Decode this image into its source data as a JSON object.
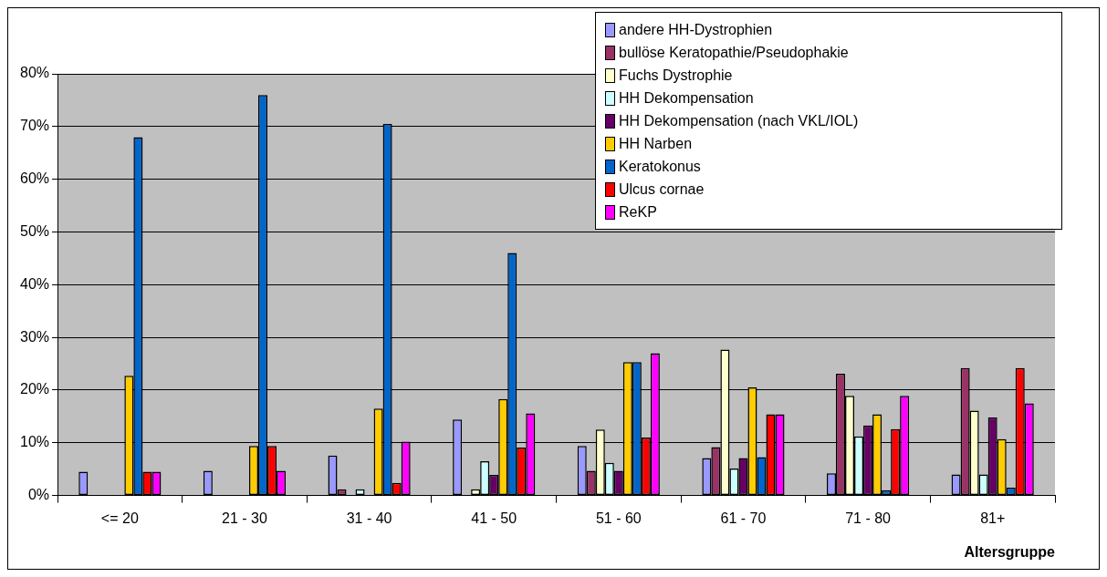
{
  "chart_data": {
    "type": "bar",
    "xlabel": "Altersgruppe",
    "categories": [
      "<= 20",
      "21 - 30",
      "31 - 40",
      "41 - 50",
      "51 - 60",
      "61 - 70",
      "71 - 80",
      "81+"
    ],
    "series": [
      {
        "name": "andere HH-Dystrophien",
        "color": "#9999ff",
        "values": [
          4.5,
          4.7,
          7.6,
          14.4,
          9.4,
          7.1,
          4.2,
          4.0
        ]
      },
      {
        "name": "bullöse Keratopathie/Pseudophakie",
        "color": "#993366",
        "values": [
          0,
          0,
          1.2,
          0,
          4.7,
          9.2,
          23.1,
          24.2
        ]
      },
      {
        "name": "Fuchs Dystrophie",
        "color": "#ffffcc",
        "values": [
          0,
          0,
          0,
          1.2,
          12.5,
          27.7,
          18.9,
          16.1
        ]
      },
      {
        "name": "HH Dekompensation",
        "color": "#ccffff",
        "values": [
          0,
          0,
          1.2,
          6.5,
          6.2,
          5.1,
          11.2,
          4.0
        ]
      },
      {
        "name": "HH Dekompensation (nach VKL/IOL)",
        "color": "#660066",
        "values": [
          0,
          0,
          0,
          3.9,
          4.7,
          7.1,
          13.3,
          14.8
        ]
      },
      {
        "name": "HH Narben",
        "color": "#ffcc00",
        "values": [
          22.7,
          9.4,
          16.5,
          18.3,
          25.3,
          20.5,
          15.4,
          10.7
        ]
      },
      {
        "name": "Keratokonus",
        "color": "#0066cc",
        "values": [
          68,
          76,
          70.5,
          46,
          25.3,
          7.3,
          1.0,
          1.5
        ]
      },
      {
        "name": "Ulcus cornae",
        "color": "#ff0000",
        "values": [
          4.5,
          9.4,
          2.4,
          9.1,
          11,
          15.4,
          12.6,
          24.2
        ]
      },
      {
        "name": "ReKP",
        "color": "#ff00ff",
        "values": [
          4.5,
          4.7,
          10.2,
          15.6,
          27,
          15.4,
          18.9,
          17.5
        ]
      }
    ],
    "ylim": [
      0,
      80
    ],
    "yticks": [
      {
        "value": 0,
        "label": "0%"
      },
      {
        "value": 10,
        "label": "10%"
      },
      {
        "value": 20,
        "label": "20%"
      },
      {
        "value": 30,
        "label": "30%"
      },
      {
        "value": 40,
        "label": "40%"
      },
      {
        "value": 50,
        "label": "50%"
      },
      {
        "value": 60,
        "label": "60%"
      },
      {
        "value": 70,
        "label": "70%"
      },
      {
        "value": 80,
        "label": "80%"
      }
    ],
    "grid": "y",
    "legend": "top right"
  }
}
